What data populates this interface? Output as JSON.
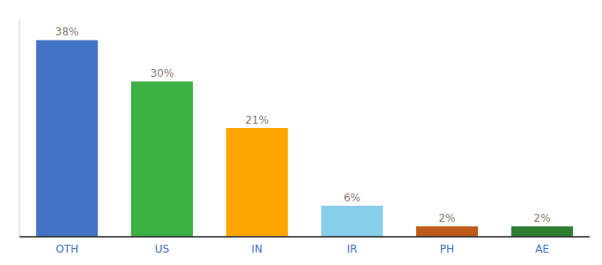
{
  "chart_data": {
    "type": "bar",
    "categories": [
      "OTH",
      "US",
      "IN",
      "IR",
      "PH",
      "AE"
    ],
    "values": [
      38,
      30,
      21,
      6,
      2,
      2
    ],
    "value_labels": [
      "38%",
      "30%",
      "21%",
      "6%",
      "2%",
      "2%"
    ],
    "colors": [
      "#4472C4",
      "#3CB043",
      "#FFA500",
      "#87CEEB",
      "#C05A1A",
      "#2E7D32"
    ],
    "ylim": [
      0,
      42
    ],
    "grid": false,
    "data_labels": true,
    "tick_labels": "x"
  }
}
